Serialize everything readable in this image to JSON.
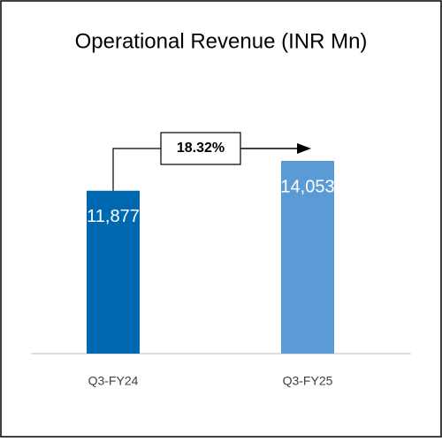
{
  "chart_data": {
    "type": "bar",
    "title": "Operational Revenue (INR Mn)",
    "categories": [
      "Q3-FY24",
      "Q3-FY25"
    ],
    "values": [
      11877,
      14053
    ],
    "value_labels": [
      "11,877",
      "14,053"
    ],
    "colors": [
      "#0068b0",
      "#5b9bd5"
    ],
    "annotation": "18.32%"
  }
}
